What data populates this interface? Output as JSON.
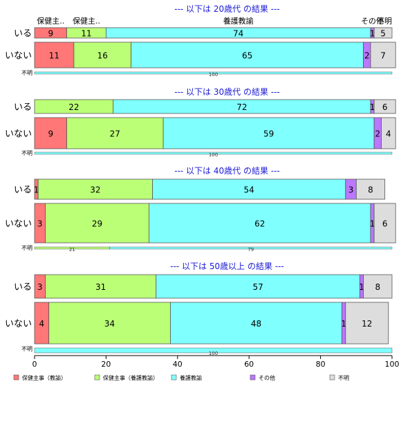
{
  "chart_data": {
    "type": "bar",
    "orientation": "horizontal",
    "stacked": "percent",
    "xlim": [
      0,
      100
    ],
    "x_ticks": [
      "0",
      "20",
      "40",
      "60",
      "80",
      "100"
    ],
    "category_headers": [
      "保健主..",
      "保健主..",
      "養護教諭",
      "その他",
      "不明"
    ],
    "legend": {
      "placement": "bottom",
      "entries": [
        {
          "name": "保健主事（教諭）",
          "color": "#ff7777"
        },
        {
          "name": "保健主事（養護教諭）",
          "color": "#bbff77"
        },
        {
          "name": "養護教諭",
          "color": "#80ffff"
        },
        {
          "name": "その他",
          "color": "#bb77ff"
        },
        {
          "name": "不明",
          "color": "#dddddd"
        }
      ]
    },
    "panels": [
      {
        "title": "--- 以下は 20歳代 の結果 ---",
        "rows": [
          {
            "label": "いる",
            "values": [
              9,
              11,
              74,
              1,
              5
            ]
          },
          {
            "label": "いない",
            "values": [
              11,
              16,
              65,
              2,
              7
            ]
          },
          {
            "label": "不明",
            "values": [
              0,
              0,
              100,
              0,
              0
            ]
          }
        ]
      },
      {
        "title": "--- 以下は 30歳代 の結果 ---",
        "rows": [
          {
            "label": "いる",
            "values": [
              0,
              22,
              72,
              1,
              6
            ]
          },
          {
            "label": "いない",
            "values": [
              9,
              27,
              59,
              2,
              4
            ]
          },
          {
            "label": "不明",
            "values": [
              0,
              0,
              100,
              0,
              0
            ]
          }
        ]
      },
      {
        "title": "--- 以下は 40歳代 の結果 ---",
        "rows": [
          {
            "label": "いる",
            "values": [
              1,
              32,
              54,
              3,
              8
            ]
          },
          {
            "label": "いない",
            "values": [
              3,
              29,
              62,
              1,
              6
            ]
          },
          {
            "label": "不明",
            "values": [
              0,
              21,
              79,
              0,
              0
            ]
          }
        ]
      },
      {
        "title": "--- 以下は 50歳以上 の結果 ---",
        "rows": [
          {
            "label": "いる",
            "values": [
              3,
              31,
              57,
              1,
              8
            ]
          },
          {
            "label": "いない",
            "values": [
              4,
              34,
              48,
              1,
              12
            ]
          },
          {
            "label": "不明",
            "values": [
              0,
              0,
              100,
              0,
              0
            ]
          }
        ]
      }
    ]
  }
}
